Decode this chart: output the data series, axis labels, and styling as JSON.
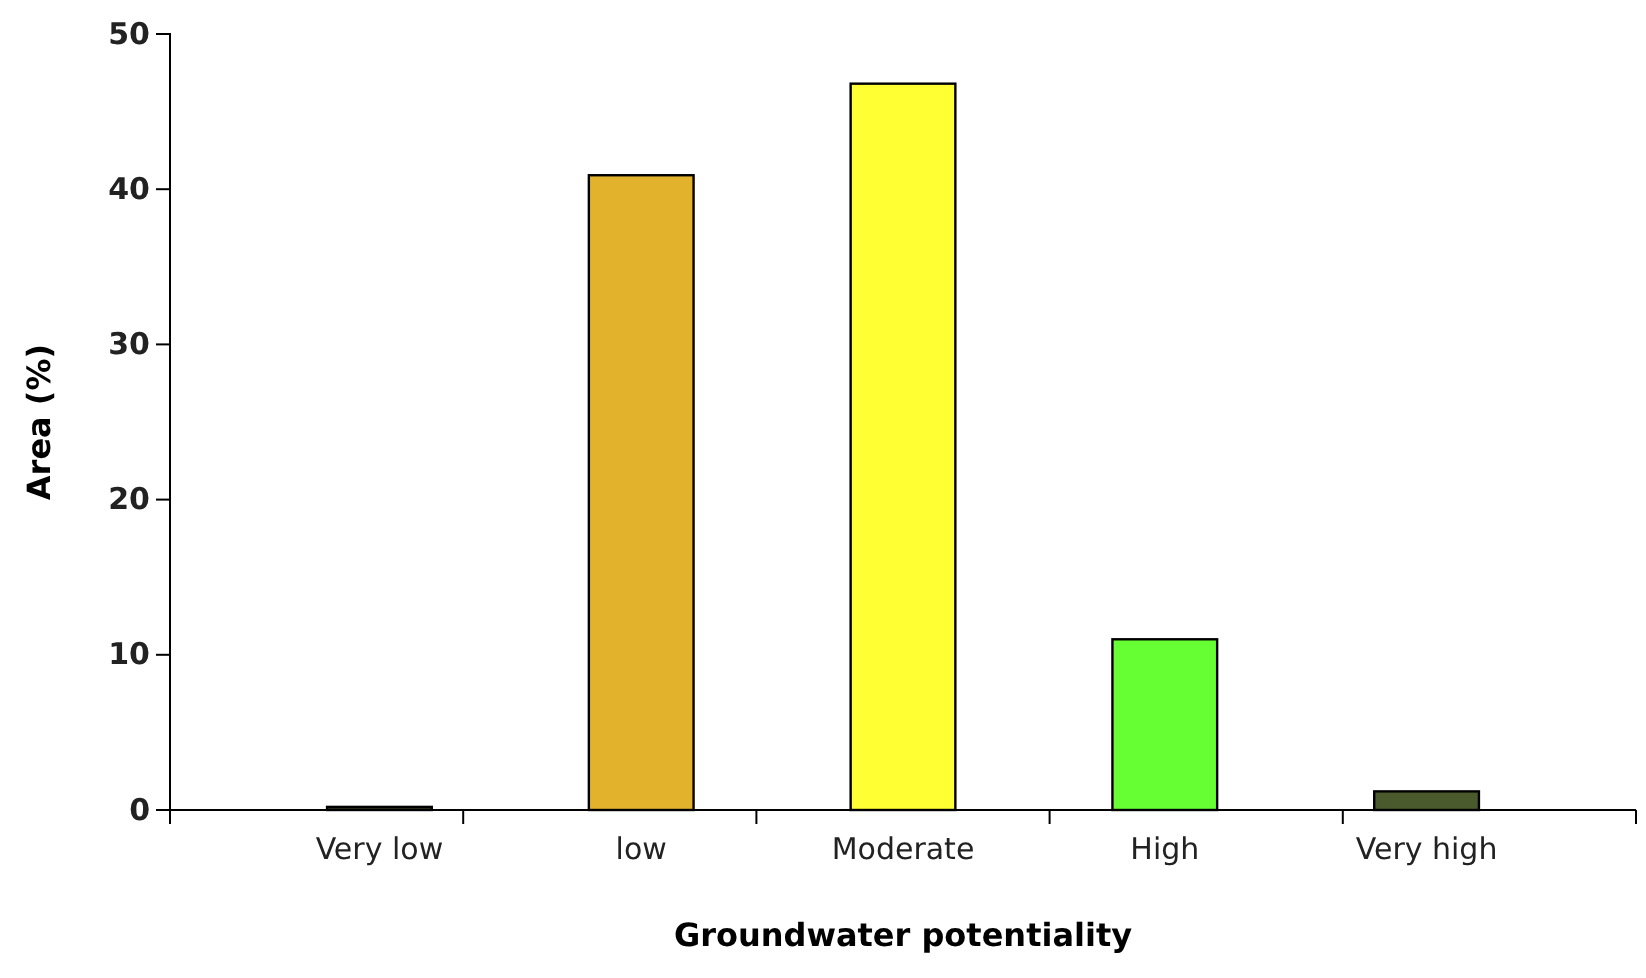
{
  "chart_data": {
    "type": "bar",
    "xlabel": "Groundwater potentiality",
    "ylabel": "Area (%)",
    "categories": [
      "Very low",
      "low",
      "Moderate",
      "High",
      "Very high"
    ],
    "values": [
      0.2,
      40.9,
      46.8,
      11,
      1.2
    ],
    "colors": [
      "#3a3a20",
      "#e3b22c",
      "#ffff33",
      "#66ff33",
      "#4b5a2c"
    ],
    "ylim": [
      0,
      50
    ],
    "yticks": [
      0,
      10,
      20,
      30,
      40,
      50
    ],
    "grid": false
  }
}
